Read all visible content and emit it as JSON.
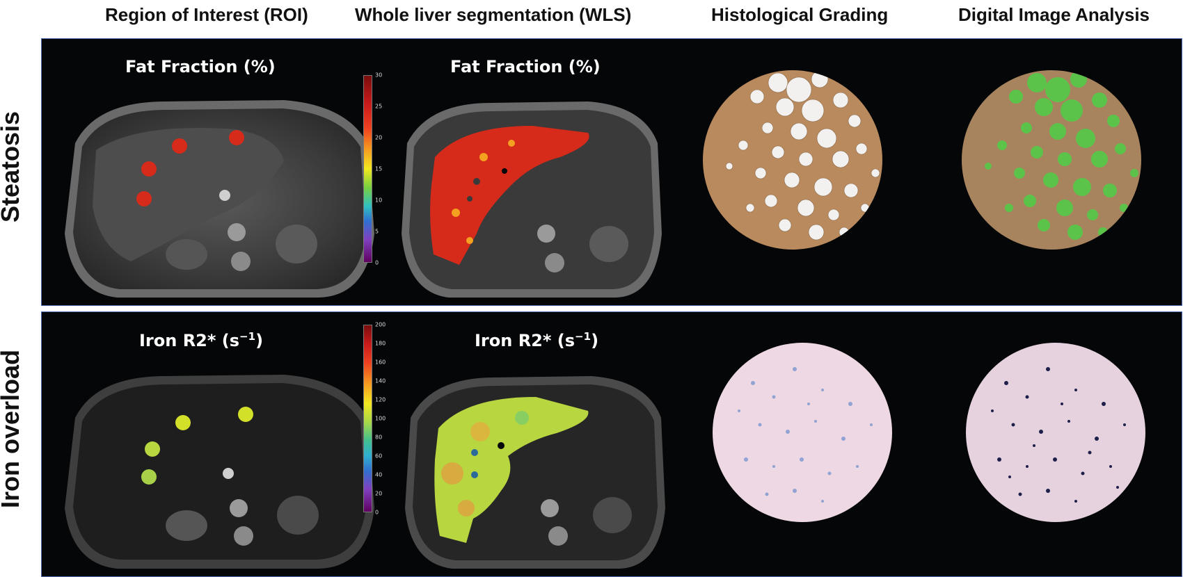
{
  "headers": {
    "roi": "Region of Interest (ROI)",
    "wls": "Whole liver segmentation (WLS)",
    "histo": "Histological Grading",
    "dia": "Digital Image Analysis"
  },
  "rows": {
    "steatosis": "Steatosis",
    "iron": "Iron overload"
  },
  "steatosis_panel": {
    "roi_label": "Fat Fraction (%)",
    "wls_label": "Fat Fraction (%)",
    "colorbar_ticks": [
      "30",
      "25",
      "20",
      "15",
      "10",
      "5",
      "0"
    ]
  },
  "iron_panel": {
    "roi_label_main": "Iron R2* (s",
    "roi_label_sup": "−1",
    "roi_label_end": ")",
    "wls_label_main": "Iron R2* (s",
    "wls_label_sup": "−1",
    "wls_label_end": ")",
    "colorbar_ticks": [
      "200",
      "180",
      "160",
      "140",
      "120",
      "100",
      "80",
      "60",
      "40",
      "20",
      "0"
    ]
  },
  "colors": {
    "panel_bg": "#050607",
    "panel_border": "#4a6bb0",
    "fat_overlay": "#d62a1a",
    "iron_overlay": "#b8d640",
    "fat_droplet": "#5cc34a",
    "iron_stain": "#1d1f4a"
  }
}
